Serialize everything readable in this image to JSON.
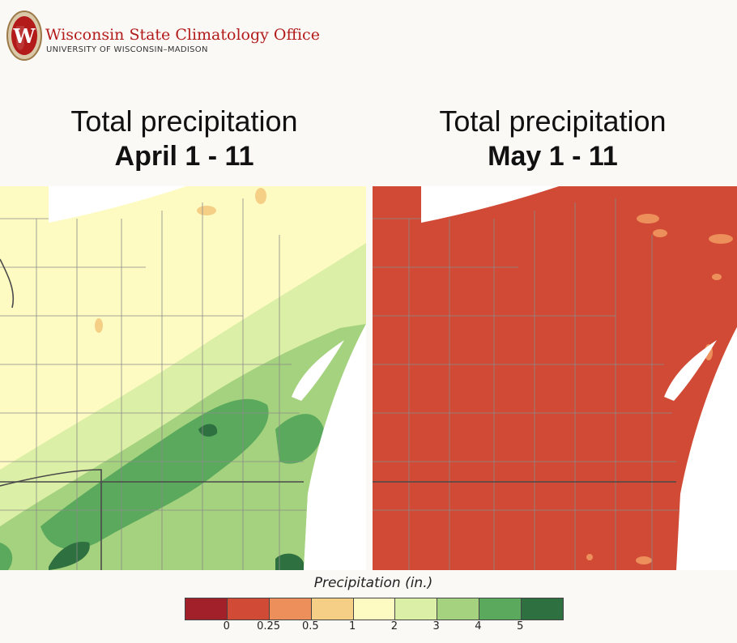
{
  "header": {
    "org_name": "Wisconsin State Climatology Office",
    "org_sub": "UNIVERSITY OF WISCONSIN–MADISON",
    "seal_letter": "W",
    "seal_color": "#b31b1b"
  },
  "panels": [
    {
      "line1": "Total precipitation",
      "line2": "April 1 - 11"
    },
    {
      "line1": "Total precipitation",
      "line2": "May 1 - 11"
    }
  ],
  "legend": {
    "title": "Precipitation (in.)",
    "colors": [
      "#a2202a",
      "#d14a35",
      "#ed8f5a",
      "#f6cf86",
      "#fdfbc2",
      "#dcefa6",
      "#a5d27e",
      "#5aa95d",
      "#2f7040"
    ],
    "labels": [
      "0",
      "0.25",
      "0.5",
      "1",
      "2",
      "3",
      "4",
      "5"
    ]
  },
  "map_colors": {
    "lake": "#ffffff",
    "county_line": "#8a8a8a",
    "state_line": "#4a4a4a"
  }
}
